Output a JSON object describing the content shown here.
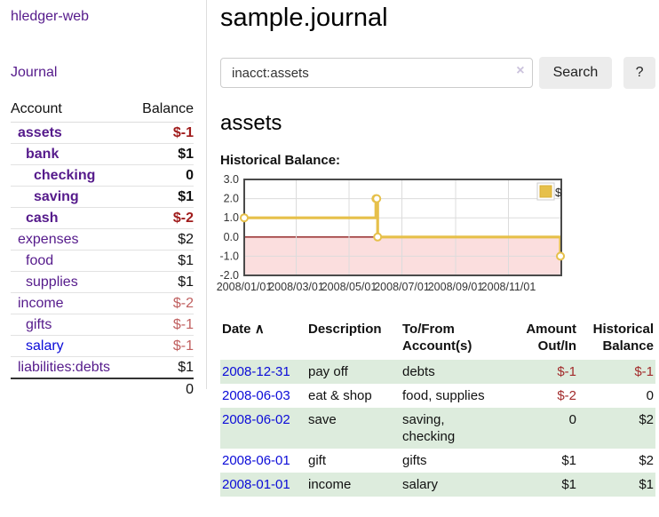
{
  "app": {
    "brand": "hledger-web",
    "nav_journal": "Journal"
  },
  "sidebar": {
    "header": {
      "account": "Account",
      "balance": "Balance"
    },
    "accounts": [
      {
        "name": "assets",
        "depth": 0,
        "bold": true,
        "balance": "$-1",
        "balance_style": "neg-strong"
      },
      {
        "name": "bank",
        "depth": 1,
        "bold": true,
        "balance": "$1",
        "balance_style": "pos-strong"
      },
      {
        "name": "checking",
        "depth": 2,
        "bold": true,
        "balance": "0",
        "balance_style": "pos-strong"
      },
      {
        "name": "saving",
        "depth": 2,
        "bold": true,
        "balance": "$1",
        "balance_style": "pos-strong"
      },
      {
        "name": "cash",
        "depth": 1,
        "bold": true,
        "balance": "$-2",
        "balance_style": "neg-strong"
      },
      {
        "name": "expenses",
        "depth": 0,
        "bold": false,
        "balance": "$2",
        "balance_style": "pos"
      },
      {
        "name": "food",
        "depth": 1,
        "bold": false,
        "balance": "$1",
        "balance_style": "pos"
      },
      {
        "name": "supplies",
        "depth": 1,
        "bold": false,
        "balance": "$1",
        "balance_style": "pos"
      },
      {
        "name": "income",
        "depth": 0,
        "bold": false,
        "balance": "$-2",
        "balance_style": "neg"
      },
      {
        "name": "gifts",
        "depth": 1,
        "bold": false,
        "balance": "$-1",
        "balance_style": "neg"
      },
      {
        "name": "salary",
        "depth": 1,
        "bold": false,
        "balance": "$-1",
        "balance_style": "neg",
        "link_color": "blue"
      },
      {
        "name": "liabilities:debts",
        "depth": 0,
        "bold": false,
        "balance": "$1",
        "balance_style": "pos"
      }
    ],
    "total": "0"
  },
  "header": {
    "title": "sample.journal"
  },
  "search": {
    "value": "inacct:assets",
    "clear_icon": "×",
    "button": "Search",
    "help_button": "?"
  },
  "account_page": {
    "title": "assets",
    "chart_label": "Historical Balance:"
  },
  "chart_data": {
    "type": "line",
    "step": true,
    "title": "Historical Balance",
    "series": [
      {
        "name": "$",
        "color": "#e6c04a",
        "points": [
          [
            "2008-01-01",
            1
          ],
          [
            "2008-06-01",
            2
          ],
          [
            "2008-06-02",
            2
          ],
          [
            "2008-06-03",
            0
          ],
          [
            "2008-12-31",
            -1
          ]
        ]
      }
    ],
    "xlim": [
      "2008-01-01",
      "2009-01-01"
    ],
    "ylim": [
      -2,
      3
    ],
    "x_ticks": [
      "2008/01/01",
      "2008/03/01",
      "2008/05/01",
      "2008/07/01",
      "2008/09/01",
      "2008/11/01"
    ],
    "y_ticks": [
      3,
      2,
      1,
      0,
      -1,
      -2
    ],
    "y_tick_labels": [
      "3.0",
      "2.0",
      "1.0",
      "0.0",
      "-1.0",
      "-2.0"
    ],
    "grid": true,
    "negative_fill": "#fbdede",
    "zero_line_color": "#8b1a1a",
    "border_color": "#4a4a4a",
    "legend": {
      "label": "$",
      "position": "top-right"
    }
  },
  "register": {
    "sort_icon": "∧",
    "columns": [
      {
        "label": "Date"
      },
      {
        "label": "Description"
      },
      {
        "label": "To/From Account(s)"
      },
      {
        "label": "Amount Out/In"
      },
      {
        "label": "Historical Balance"
      }
    ],
    "rows": [
      {
        "date": "2008-12-31",
        "description": "pay off",
        "accounts": "debts",
        "amount": "$-1",
        "amount_neg": true,
        "balance": "$-1",
        "balance_neg": true,
        "shaded": true
      },
      {
        "date": "2008-06-03",
        "description": "eat & shop",
        "accounts": "food, supplies",
        "amount": "$-2",
        "amount_neg": true,
        "balance": "0",
        "balance_neg": false,
        "shaded": false
      },
      {
        "date": "2008-06-02",
        "description": "save",
        "accounts": "saving, checking",
        "amount": "0",
        "amount_neg": false,
        "balance": "$2",
        "balance_neg": false,
        "shaded": true
      },
      {
        "date": "2008-06-01",
        "description": "gift",
        "accounts": "gifts",
        "amount": "$1",
        "amount_neg": false,
        "balance": "$2",
        "balance_neg": false,
        "shaded": false
      },
      {
        "date": "2008-01-01",
        "description": "income",
        "accounts": "salary",
        "amount": "$1",
        "amount_neg": false,
        "balance": "$1",
        "balance_neg": false,
        "shaded": true
      }
    ]
  }
}
